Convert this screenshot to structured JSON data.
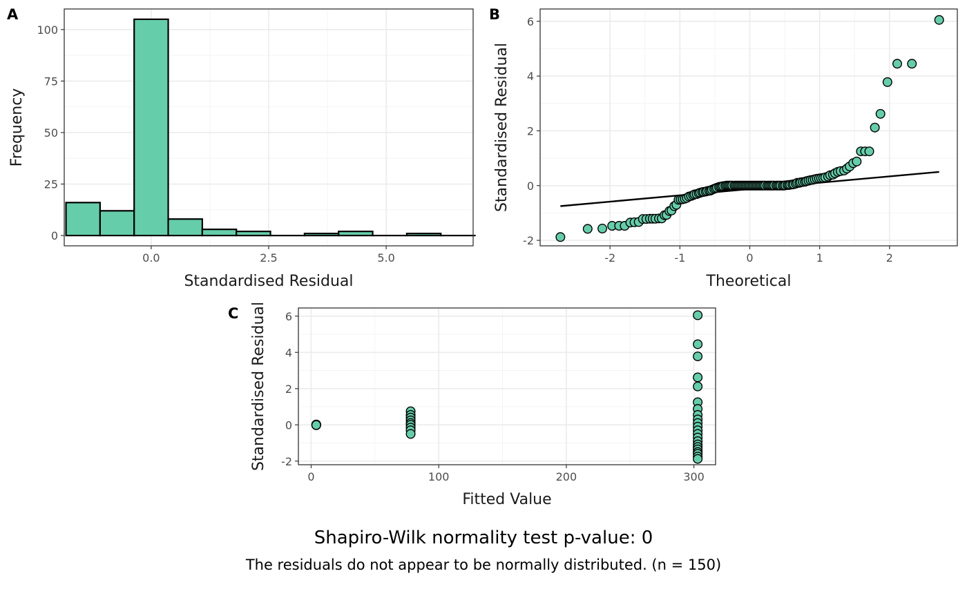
{
  "colors": {
    "fill": "#66CDAA",
    "stroke": "#000000",
    "grid_major": "#EBEBEB",
    "grid_minor": "#F4F4F4"
  },
  "caption": {
    "title": "Shapiro-Wilk normality test p-value: 0",
    "subtitle": "The residuals do not appear to be normally distributed. (n = 150)"
  },
  "chart_data": [
    {
      "tag": "A",
      "type": "bar",
      "xlabel": "Standardised Residual",
      "ylabel": "Frequency",
      "xlim": [
        -1.85,
        6.85
      ],
      "ylim": [
        -5,
        110
      ],
      "xticks": [
        "0.0",
        "2.5",
        "5.0"
      ],
      "yticks": [
        "0",
        "25",
        "50",
        "75",
        "100"
      ],
      "bin_width": 0.725,
      "bin_centers": [
        -1.45,
        -0.725,
        0.0,
        0.725,
        1.45,
        2.175,
        2.9,
        3.625,
        4.35,
        5.075,
        5.8,
        6.525
      ],
      "values": [
        16,
        12,
        105,
        8,
        3,
        2,
        0,
        1,
        2,
        0,
        1,
        0
      ]
    },
    {
      "tag": "B",
      "type": "scatter",
      "xlabel": "Theoretical",
      "ylabel": "Standardised Residual",
      "xlim": [
        -3.0,
        2.97
      ],
      "ylim": [
        -2.2,
        6.45
      ],
      "xticks": [
        "-2",
        "-1",
        "0",
        "1",
        "2"
      ],
      "yticks": [
        "-2",
        "0",
        "2",
        "4",
        "6"
      ],
      "reference_line": {
        "x": [
          -2.71,
          2.71
        ],
        "y": [
          -0.75,
          0.5
        ]
      },
      "points": [
        [
          -2.71,
          -1.88
        ],
        [
          -2.32,
          -1.58
        ],
        [
          -2.11,
          -1.57
        ],
        [
          -1.97,
          -1.47
        ],
        [
          -1.87,
          -1.47
        ],
        [
          -1.79,
          -1.47
        ],
        [
          -1.71,
          -1.35
        ],
        [
          -1.65,
          -1.34
        ],
        [
          -1.59,
          -1.33
        ],
        [
          -1.53,
          -1.22
        ],
        [
          -1.48,
          -1.22
        ],
        [
          -1.43,
          -1.21
        ],
        [
          -1.39,
          -1.21
        ],
        [
          -1.35,
          -1.21
        ],
        [
          -1.3,
          -1.2
        ],
        [
          -1.26,
          -1.2
        ],
        [
          -1.22,
          -1.08
        ],
        [
          -1.19,
          -1.07
        ],
        [
          -1.15,
          -0.93
        ],
        [
          -1.12,
          -0.91
        ],
        [
          -1.08,
          -0.75
        ],
        [
          -1.05,
          -0.7
        ],
        [
          -1.02,
          -0.52
        ],
        [
          -0.99,
          -0.51
        ],
        [
          -0.96,
          -0.5
        ],
        [
          -0.93,
          -0.48
        ],
        [
          -0.9,
          -0.45
        ],
        [
          -0.87,
          -0.4
        ],
        [
          -0.84,
          -0.38
        ],
        [
          -0.81,
          -0.35
        ],
        [
          -0.79,
          -0.32
        ],
        [
          -0.76,
          -0.31
        ],
        [
          -0.73,
          -0.28
        ],
        [
          -0.71,
          -0.26
        ],
        [
          -0.68,
          -0.24
        ],
        [
          -0.66,
          -0.23
        ],
        [
          -0.63,
          -0.22
        ],
        [
          -0.61,
          -0.2
        ],
        [
          -0.58,
          -0.19
        ],
        [
          -0.56,
          -0.18
        ],
        [
          -0.54,
          -0.15
        ],
        [
          -0.51,
          -0.12
        ],
        [
          -0.49,
          -0.1
        ],
        [
          -0.47,
          -0.08
        ],
        [
          -0.44,
          -0.05
        ],
        [
          -0.42,
          -0.04
        ],
        [
          -0.4,
          -0.03
        ],
        [
          -0.38,
          -0.02
        ],
        [
          -0.35,
          -0.01
        ],
        [
          -0.33,
          0.0
        ],
        [
          -0.31,
          0.0
        ],
        [
          -0.29,
          0.0
        ],
        [
          -0.27,
          0.0
        ],
        [
          -0.25,
          0.0
        ],
        [
          -0.22,
          0.0
        ],
        [
          -0.2,
          0.0
        ],
        [
          -0.18,
          0.0
        ],
        [
          -0.16,
          0.0
        ],
        [
          -0.14,
          0.0
        ],
        [
          -0.12,
          0.0
        ],
        [
          -0.1,
          0.0
        ],
        [
          -0.08,
          0.0
        ],
        [
          -0.06,
          0.0
        ],
        [
          -0.04,
          0.0
        ],
        [
          -0.02,
          0.0
        ],
        [
          0.0,
          0.0
        ],
        [
          0.02,
          0.0
        ],
        [
          0.04,
          0.0
        ],
        [
          0.06,
          0.0
        ],
        [
          0.08,
          0.0
        ],
        [
          0.1,
          0.0
        ],
        [
          0.12,
          0.0
        ],
        [
          0.14,
          0.0
        ],
        [
          0.16,
          0.0
        ],
        [
          0.18,
          0.0
        ],
        [
          0.2,
          0.0
        ],
        [
          0.22,
          0.0
        ],
        [
          0.25,
          0.0
        ],
        [
          0.27,
          0.0
        ],
        [
          0.29,
          0.0
        ],
        [
          0.31,
          0.0
        ],
        [
          0.33,
          0.0
        ],
        [
          0.35,
          0.0
        ],
        [
          0.38,
          0.0
        ],
        [
          0.4,
          0.0
        ],
        [
          0.42,
          0.0
        ],
        [
          0.44,
          0.0
        ],
        [
          0.47,
          0.0
        ],
        [
          0.49,
          0.0
        ],
        [
          0.51,
          0.01
        ],
        [
          0.54,
          0.02
        ],
        [
          0.56,
          0.02
        ],
        [
          0.58,
          0.03
        ],
        [
          0.61,
          0.04
        ],
        [
          0.63,
          0.05
        ],
        [
          0.66,
          0.07
        ],
        [
          0.68,
          0.1
        ],
        [
          0.71,
          0.1
        ],
        [
          0.73,
          0.12
        ],
        [
          0.76,
          0.13
        ],
        [
          0.79,
          0.14
        ],
        [
          0.81,
          0.16
        ],
        [
          0.84,
          0.18
        ],
        [
          0.87,
          0.2
        ],
        [
          0.9,
          0.21
        ],
        [
          0.93,
          0.23
        ],
        [
          0.96,
          0.25
        ],
        [
          0.99,
          0.26
        ],
        [
          1.02,
          0.27
        ],
        [
          1.05,
          0.28
        ],
        [
          1.08,
          0.3
        ],
        [
          1.12,
          0.33
        ],
        [
          1.15,
          0.38
        ],
        [
          1.19,
          0.4
        ],
        [
          1.22,
          0.45
        ],
        [
          1.26,
          0.5
        ],
        [
          1.3,
          0.53
        ],
        [
          1.35,
          0.55
        ],
        [
          1.39,
          0.62
        ],
        [
          1.43,
          0.7
        ],
        [
          1.48,
          0.82
        ],
        [
          1.53,
          0.88
        ],
        [
          1.59,
          1.25
        ],
        [
          1.65,
          1.25
        ],
        [
          1.71,
          1.25
        ],
        [
          1.79,
          2.12
        ],
        [
          1.87,
          2.62
        ],
        [
          1.97,
          3.78
        ],
        [
          2.11,
          4.45
        ],
        [
          2.32,
          4.45
        ],
        [
          2.71,
          6.05
        ]
      ]
    },
    {
      "tag": "C",
      "type": "scatter",
      "xlabel": "Fitted Value",
      "ylabel": "Standardised Residual",
      "xlim": [
        -10,
        317
      ],
      "ylim": [
        -2.2,
        6.45
      ],
      "xticks": [
        "0",
        "100",
        "200",
        "300"
      ],
      "yticks": [
        "-2",
        "0",
        "2",
        "4",
        "6"
      ],
      "points": [
        [
          4,
          0.0
        ],
        [
          4,
          0.02
        ],
        [
          4,
          -0.02
        ],
        [
          4,
          0.01
        ],
        [
          4,
          -0.01
        ],
        [
          78,
          0.75
        ],
        [
          78,
          0.55
        ],
        [
          78,
          0.4
        ],
        [
          78,
          0.25
        ],
        [
          78,
          0.1
        ],
        [
          78,
          0.0
        ],
        [
          78,
          -0.15
        ],
        [
          78,
          -0.3
        ],
        [
          78,
          -0.5
        ],
        [
          303,
          6.05
        ],
        [
          303,
          4.45
        ],
        [
          303,
          3.78
        ],
        [
          303,
          2.62
        ],
        [
          303,
          2.12
        ],
        [
          303,
          1.25
        ],
        [
          303,
          0.88
        ],
        [
          303,
          0.55
        ],
        [
          303,
          0.3
        ],
        [
          303,
          0.1
        ],
        [
          303,
          -0.1
        ],
        [
          303,
          -0.3
        ],
        [
          303,
          -0.5
        ],
        [
          303,
          -0.7
        ],
        [
          303,
          -0.9
        ],
        [
          303,
          -1.08
        ],
        [
          303,
          -1.22
        ],
        [
          303,
          -1.35
        ],
        [
          303,
          -1.5
        ],
        [
          303,
          -1.6
        ],
        [
          303,
          -1.75
        ],
        [
          303,
          -1.88
        ]
      ]
    }
  ]
}
